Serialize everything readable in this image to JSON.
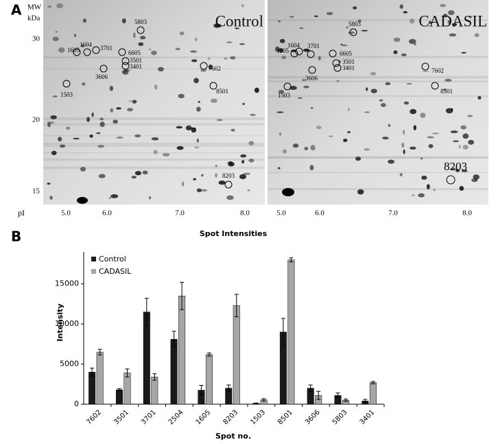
{
  "panel_a": {
    "label": "A",
    "mw_label": "MW",
    "mw_unit": "kDa",
    "mw_ticks": [
      "30",
      "20",
      "15"
    ],
    "pi_label": "pI",
    "pi_ticks": [
      "5.0",
      "6.0",
      "7.0",
      "8.0"
    ],
    "gels": [
      {
        "title": "Control",
        "spots": [
          "5803",
          "1604",
          "3701",
          "1605",
          "6605",
          "3501",
          "3401",
          "3606",
          "7602",
          "8501",
          "1503",
          "8203"
        ]
      },
      {
        "title": "CADASIL",
        "spots": [
          "5803",
          "1604",
          "3701",
          "1605",
          "6605",
          "3501",
          "3401",
          "3606",
          "7602",
          "8501",
          "1503",
          "8203"
        ]
      }
    ]
  },
  "panel_b_label": "B",
  "chart_data": {
    "type": "bar",
    "title": "Spot Intensities",
    "x_label": "Spot no.",
    "y_label": "Intensity",
    "categories": [
      "7602",
      "3501",
      "3701",
      "2504",
      "1605",
      "8203",
      "1503",
      "8501",
      "3606",
      "5803",
      "3401"
    ],
    "series": [
      {
        "name": "Control",
        "color": "#1a1a1a",
        "values": [
          4000,
          1800,
          11500,
          8100,
          1750,
          2000,
          100,
          9000,
          2000,
          1100,
          400
        ],
        "errors": [
          500,
          150,
          1700,
          1000,
          600,
          400,
          50,
          1700,
          400,
          300,
          200
        ]
      },
      {
        "name": "CADASIL",
        "color": "#a6a6a6",
        "values": [
          6500,
          3900,
          3400,
          13500,
          6200,
          12300,
          550,
          18000,
          1100,
          500,
          2700
        ],
        "errors": [
          350,
          500,
          400,
          1700,
          200,
          1400,
          150,
          250,
          500,
          150,
          150
        ]
      }
    ],
    "ylim": [
      0,
      19000
    ],
    "yticks": [
      0,
      5000,
      10000,
      15000
    ],
    "legend": "upper left",
    "grid": false
  }
}
